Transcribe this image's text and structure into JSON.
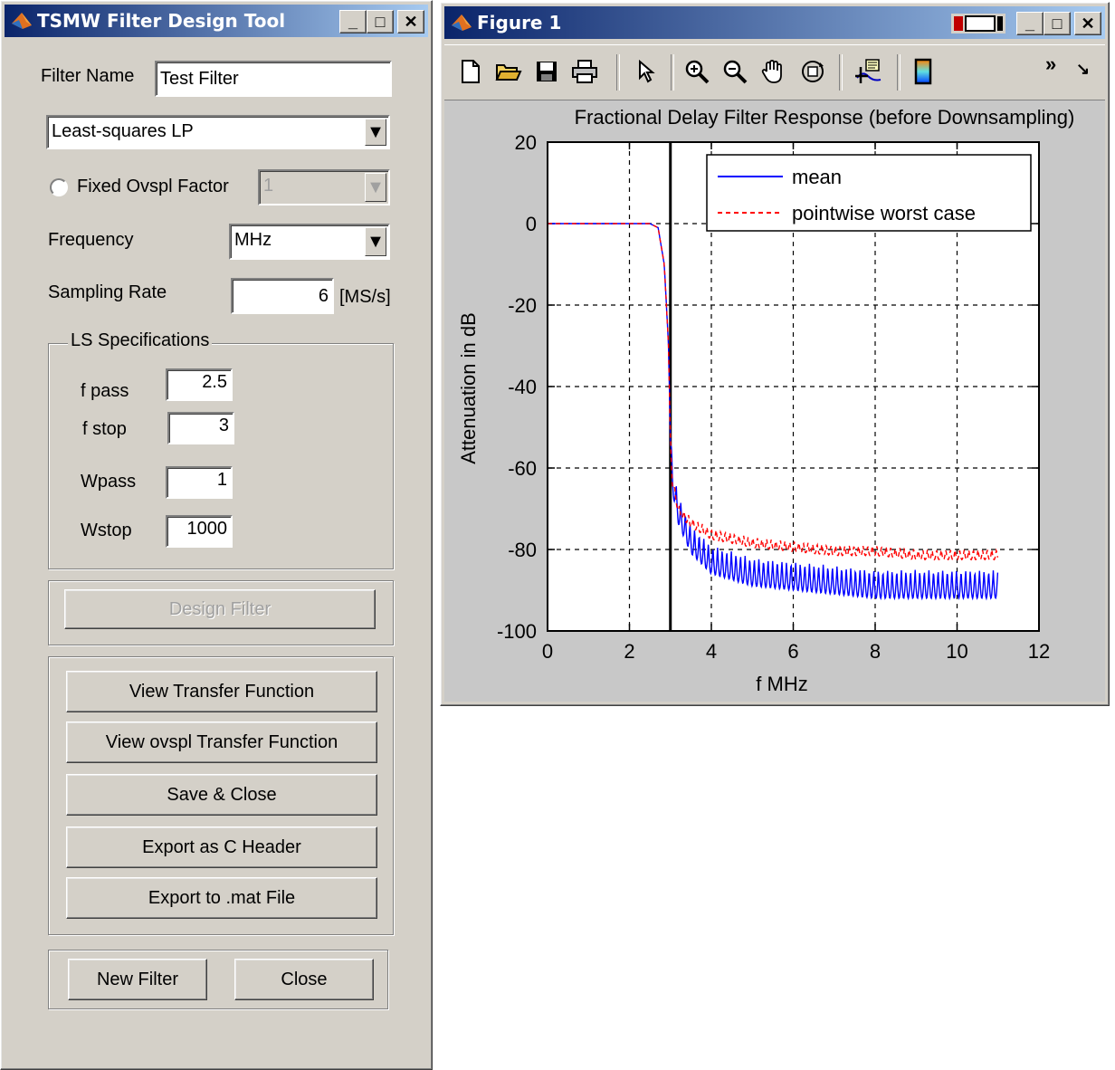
{
  "left_window": {
    "title": "TSMW Filter Design Tool",
    "filter_name_label": "Filter Name",
    "filter_name_value": "Test Filter",
    "filter_type": "Least-squares LP",
    "fixed_ovspl_label": "Fixed Ovspl Factor",
    "fixed_ovspl_value": "1",
    "frequency_label": "Frequency",
    "frequency_unit": "MHz",
    "sampling_rate_label": "Sampling Rate",
    "sampling_rate_value": "6",
    "sampling_rate_unit": "[MS/s]",
    "ls_group_title": "LS Specifications",
    "fpass_label": "f pass",
    "fpass_value": "2.5",
    "fstop_label": "f stop",
    "fstop_value": "3",
    "wpass_label": "Wpass",
    "wpass_value": "1",
    "wstop_label": "Wstop",
    "wstop_value": "1000",
    "design_filter": "Design Filter",
    "view_tf": "View Transfer Function",
    "view_ovspl_tf": "View ovspl Transfer Function",
    "save_close": "Save  & Close",
    "export_c": "Export as C Header",
    "export_mat": "Export to .mat File",
    "new_filter": "New Filter",
    "close": "Close"
  },
  "right_window": {
    "title": "Figure 1",
    "toolbar": [
      "new-file-icon",
      "open-folder-icon",
      "save-icon",
      "print-icon",
      "pointer-icon",
      "zoom-in-icon",
      "zoom-out-icon",
      "pan-hand-icon",
      "rotate-3d-icon",
      "data-cursor-icon",
      "colorbar-icon"
    ],
    "overflow": "»"
  },
  "chart_data": {
    "type": "line",
    "title": "Fractional Delay Filter Response (before Downsampling)",
    "xlabel": "f MHz",
    "ylabel": "Attenuation in dB",
    "xlim": [
      0,
      12
    ],
    "ylim": [
      -100,
      20
    ],
    "xticks": [
      "0",
      "2",
      "4",
      "6",
      "8",
      "10",
      "12"
    ],
    "yticks": [
      "20",
      "0",
      "-20",
      "-40",
      "-60",
      "-80",
      "-100"
    ],
    "grid": true,
    "legend_position": "top-right",
    "vertical_marker_x": 3,
    "series": [
      {
        "name": "mean",
        "color": "#0000ff",
        "style": "solid",
        "x": [
          0,
          2.5,
          2.7,
          2.85,
          2.95,
          3.0,
          3.05,
          3.2,
          3.5,
          4.0,
          5.0,
          6.0,
          7.0,
          8.0,
          9.0,
          10.0,
          11.0
        ],
        "y": [
          0,
          0,
          -1,
          -10,
          -29,
          -52,
          -62,
          -70,
          -77,
          -82,
          -85,
          -86,
          -87,
          -88,
          -88,
          -88,
          -88
        ]
      },
      {
        "name": "pointwise worst case",
        "color": "#ff0000",
        "style": "dashed",
        "x": [
          0,
          2.5,
          2.7,
          2.85,
          2.95,
          3.0,
          3.05,
          3.2,
          3.5,
          4.0,
          5.0,
          6.0,
          7.0,
          8.0,
          9.0,
          10.0,
          11.0
        ],
        "y": [
          0,
          0,
          -1,
          -10,
          -29,
          -53,
          -63,
          -70,
          -73,
          -76,
          -78,
          -79,
          -80,
          -80,
          -81,
          -81,
          -81
        ]
      }
    ]
  }
}
